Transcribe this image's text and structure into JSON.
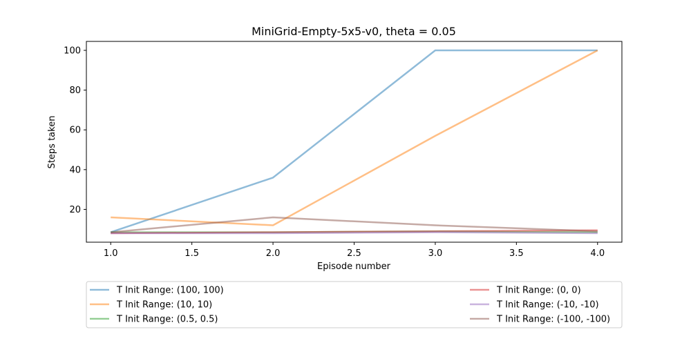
{
  "chart_data": {
    "type": "line",
    "title": "MiniGrid-Empty-5x5-v0, theta = 0.05",
    "xlabel": "Episode number",
    "ylabel": "Steps taken",
    "xlim": [
      0.85,
      4.15
    ],
    "ylim": [
      3.5,
      104.5
    ],
    "x": [
      1.0,
      2.0,
      3.0,
      4.0
    ],
    "xticks": [
      "1.0",
      "1.5",
      "2.0",
      "2.5",
      "3.0",
      "3.5",
      "4.0"
    ],
    "yticks": [
      "20",
      "40",
      "60",
      "80",
      "100"
    ],
    "grid": false,
    "legend_placement": "below plot",
    "series": [
      {
        "name": "T Init Range: (100, 100)",
        "color": "#1f77b4",
        "values": [
          8.5,
          36,
          100,
          100
        ]
      },
      {
        "name": "T Init Range: (10, 10)",
        "color": "#ff7f0e",
        "values": [
          16,
          12,
          57,
          100
        ]
      },
      {
        "name": "T Init Range: (0.5, 0.5)",
        "color": "#2ca02c",
        "values": [
          8.5,
          8.5,
          9,
          8.5
        ]
      },
      {
        "name": "T Init Range: (0, 0)",
        "color": "#d62728",
        "values": [
          8,
          8.5,
          9,
          9.5
        ]
      },
      {
        "name": "T Init Range: (-10, -10)",
        "color": "#9467bd",
        "values": [
          8,
          8,
          8.5,
          8
        ]
      },
      {
        "name": "T Init Range: (-100, -100)",
        "color": "#8c564b",
        "values": [
          8.5,
          16,
          12,
          9
        ]
      }
    ]
  }
}
